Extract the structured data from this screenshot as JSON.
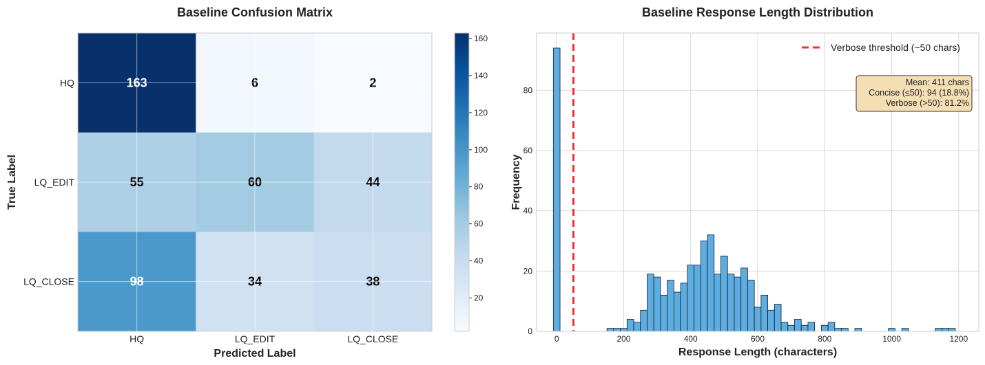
{
  "chart_data": [
    {
      "type": "heatmap",
      "title": "Baseline Confusion Matrix",
      "xlabel": "Predicted Label",
      "ylabel": "True Label",
      "x_categories": [
        "HQ",
        "LQ_EDIT",
        "LQ_CLOSE"
      ],
      "y_categories": [
        "HQ",
        "LQ_EDIT",
        "LQ_CLOSE"
      ],
      "values": [
        [
          163,
          6,
          2
        ],
        [
          55,
          60,
          44
        ],
        [
          98,
          34,
          38
        ]
      ],
      "colormap": "Blues",
      "vmin": 2,
      "vmax": 163,
      "colorbar_ticks": [
        20,
        40,
        60,
        80,
        100,
        120,
        140,
        160
      ]
    },
    {
      "type": "bar",
      "subtype": "histogram",
      "title": "Baseline Response Length Distribution",
      "xlabel": "Response Length (characters)",
      "ylabel": "Frequency",
      "xlim": [
        -60,
        1260
      ],
      "ylim": [
        0,
        99
      ],
      "xticks": [
        0,
        200,
        400,
        600,
        800,
        1000,
        1200
      ],
      "yticks": [
        0,
        20,
        40,
        60,
        80
      ],
      "bin_width": 20,
      "bins": [
        {
          "x": 0,
          "count": 94
        },
        {
          "x": 160,
          "count": 1
        },
        {
          "x": 180,
          "count": 1
        },
        {
          "x": 200,
          "count": 1
        },
        {
          "x": 220,
          "count": 4
        },
        {
          "x": 240,
          "count": 3
        },
        {
          "x": 260,
          "count": 7
        },
        {
          "x": 280,
          "count": 19
        },
        {
          "x": 300,
          "count": 18
        },
        {
          "x": 320,
          "count": 12
        },
        {
          "x": 340,
          "count": 17
        },
        {
          "x": 360,
          "count": 13
        },
        {
          "x": 380,
          "count": 16
        },
        {
          "x": 400,
          "count": 22
        },
        {
          "x": 420,
          "count": 22
        },
        {
          "x": 440,
          "count": 30
        },
        {
          "x": 460,
          "count": 32
        },
        {
          "x": 480,
          "count": 19
        },
        {
          "x": 500,
          "count": 25
        },
        {
          "x": 520,
          "count": 19
        },
        {
          "x": 540,
          "count": 18
        },
        {
          "x": 560,
          "count": 21
        },
        {
          "x": 580,
          "count": 17
        },
        {
          "x": 600,
          "count": 8
        },
        {
          "x": 620,
          "count": 12
        },
        {
          "x": 640,
          "count": 7
        },
        {
          "x": 660,
          "count": 9
        },
        {
          "x": 680,
          "count": 3
        },
        {
          "x": 700,
          "count": 2
        },
        {
          "x": 720,
          "count": 4
        },
        {
          "x": 740,
          "count": 2
        },
        {
          "x": 760,
          "count": 3
        },
        {
          "x": 800,
          "count": 2
        },
        {
          "x": 820,
          "count": 3
        },
        {
          "x": 840,
          "count": 1
        },
        {
          "x": 860,
          "count": 1
        },
        {
          "x": 900,
          "count": 1
        },
        {
          "x": 1000,
          "count": 1
        },
        {
          "x": 1040,
          "count": 1
        },
        {
          "x": 1140,
          "count": 1
        },
        {
          "x": 1160,
          "count": 1
        },
        {
          "x": 1180,
          "count": 1
        }
      ],
      "bar_color": "#5dade2",
      "threshold": {
        "x": 50,
        "label": "Verbose threshold (~50 chars)",
        "color": "#ee3333"
      },
      "legend_position": "top-right",
      "stats_box": {
        "position": "top-right",
        "lines": [
          "Mean: 411 chars",
          "Concise (≤50): 94 (18.8%)",
          "Verbose (>50): 81.2%"
        ]
      }
    }
  ]
}
